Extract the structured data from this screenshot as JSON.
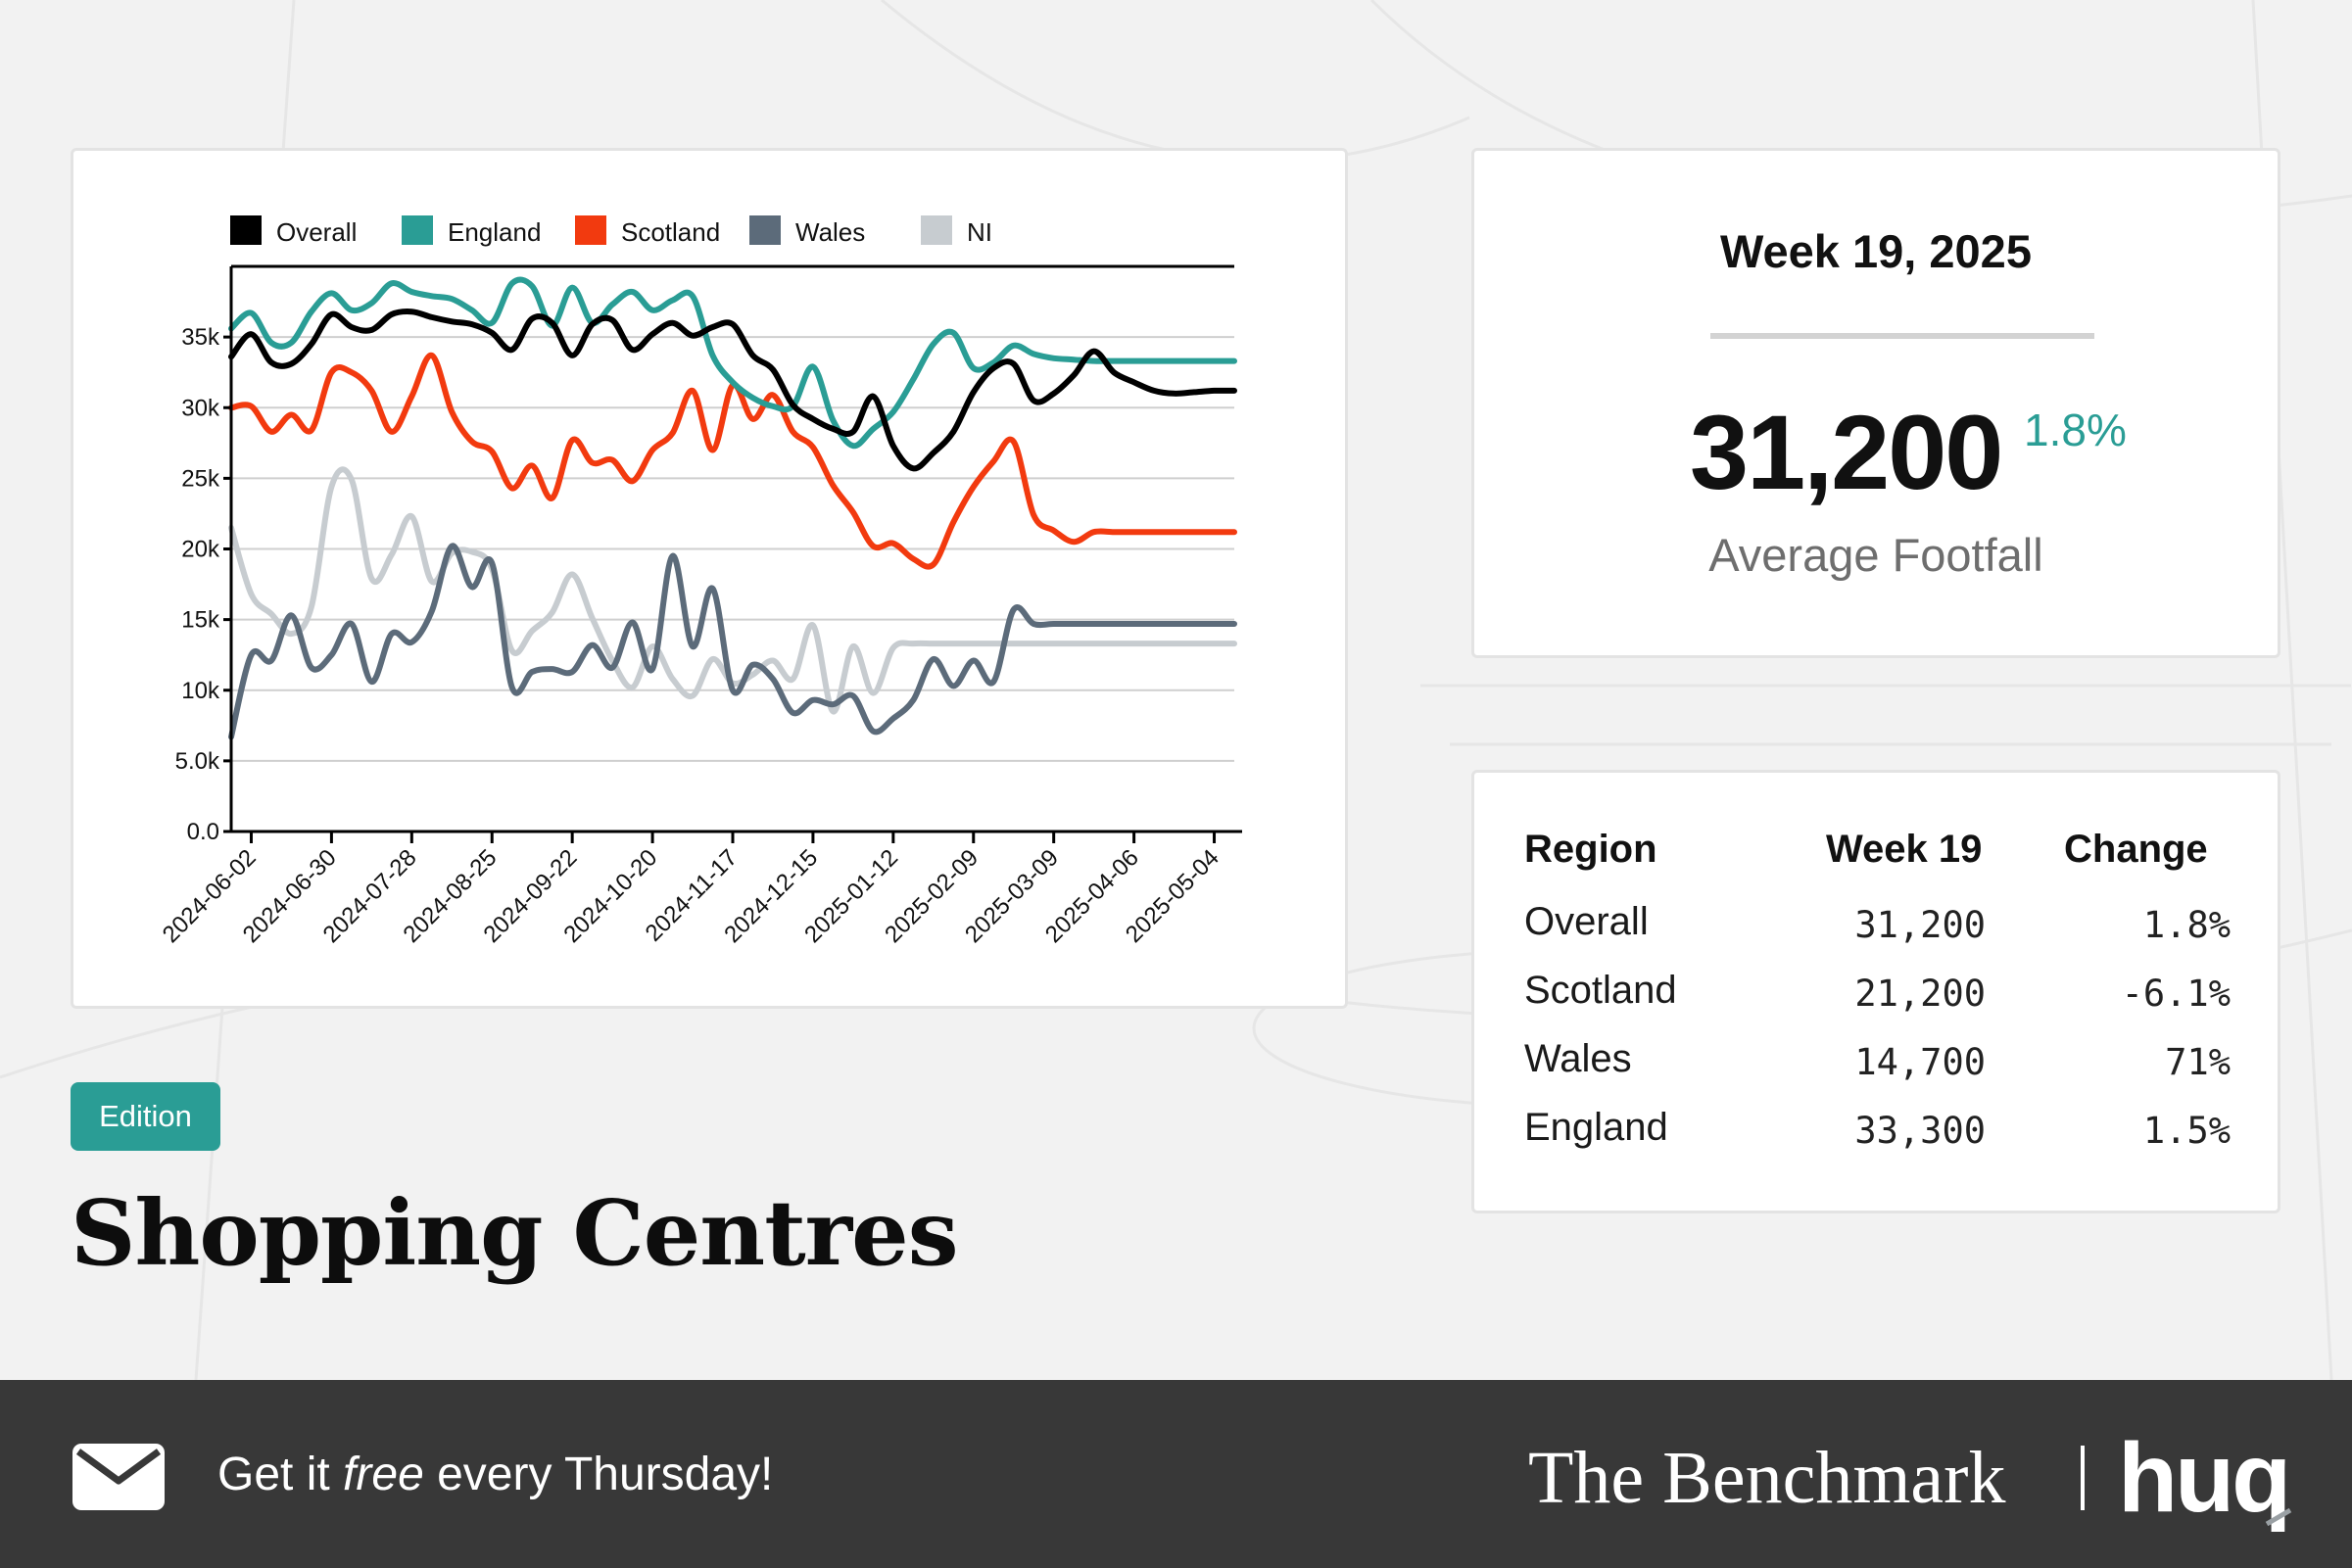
{
  "card": {
    "week_label": "Week 19, 2025",
    "value": "31,200",
    "change": "1.8%",
    "label": "Average Footfall"
  },
  "table": {
    "headers": [
      "Region",
      "Week 19",
      "Change"
    ],
    "rows": [
      {
        "region": "Overall",
        "week": "31,200",
        "change": "1.8%"
      },
      {
        "region": "Scotland",
        "week": "21,200",
        "change": "-6.1%"
      },
      {
        "region": "Wales",
        "week": "14,700",
        "change": "71%"
      },
      {
        "region": "England",
        "week": "33,300",
        "change": "1.5%"
      }
    ]
  },
  "edition": "Edition",
  "title": "Shopping Centres",
  "footer": {
    "cta_prefix": "Get it ",
    "cta_emphasis": "free",
    "cta_suffix": " every Thursday!",
    "brand": "The Benchmark",
    "logo": "huq"
  },
  "colors": {
    "Overall": "#000000",
    "England": "#2a9d95",
    "Scotland": "#f23a0f",
    "Wales": "#5c6b7a",
    "NI": "#c7ccd0",
    "accent": "#2a9d95",
    "footer_bg": "#383838"
  },
  "icons": {
    "mail": "envelope-icon"
  },
  "chart_data": {
    "type": "line",
    "legend_position": "top-left",
    "grid": true,
    "ylim": [
      0,
      40000
    ],
    "y_ticks": [
      0,
      5000,
      10000,
      15000,
      20000,
      25000,
      30000,
      35000
    ],
    "y_tick_labels": [
      "0.0",
      "5.0k",
      "10k",
      "15k",
      "20k",
      "25k",
      "30k",
      "35k"
    ],
    "x_start": "2024-05-26",
    "x_end": "2025-05-11",
    "x_ticks": [
      "2024-06-02",
      "2024-06-30",
      "2024-07-28",
      "2024-08-25",
      "2024-09-22",
      "2024-10-20",
      "2024-11-17",
      "2024-12-15",
      "2025-01-12",
      "2025-02-09",
      "2025-03-09",
      "2025-04-06",
      "2025-05-04"
    ],
    "x": [
      "2024-05-26",
      "2024-06-02",
      "2024-06-09",
      "2024-06-16",
      "2024-06-23",
      "2024-06-30",
      "2024-07-07",
      "2024-07-14",
      "2024-07-21",
      "2024-07-28",
      "2024-08-04",
      "2024-08-11",
      "2024-08-18",
      "2024-08-25",
      "2024-09-01",
      "2024-09-08",
      "2024-09-15",
      "2024-09-22",
      "2024-09-29",
      "2024-10-06",
      "2024-10-13",
      "2024-10-20",
      "2024-10-27",
      "2024-11-03",
      "2024-11-10",
      "2024-11-17",
      "2024-11-24",
      "2024-12-01",
      "2024-12-08",
      "2024-12-15",
      "2024-12-22",
      "2024-12-29",
      "2025-01-05",
      "2025-01-12",
      "2025-01-19",
      "2025-01-26",
      "2025-02-02",
      "2025-02-09",
      "2025-02-16",
      "2025-02-23",
      "2025-03-02",
      "2025-03-09",
      "2025-03-16",
      "2025-03-23",
      "2025-03-30",
      "2025-04-06",
      "2025-04-13",
      "2025-04-20",
      "2025-04-27",
      "2025-05-04",
      "2025-05-11"
    ],
    "series": [
      {
        "name": "Overall",
        "values": [
          33600,
          35200,
          33200,
          33100,
          34500,
          36600,
          35700,
          35500,
          36600,
          36800,
          36400,
          36100,
          35900,
          35300,
          34100,
          36300,
          36000,
          33700,
          35900,
          36200,
          34100,
          35200,
          36000,
          35100,
          35700,
          35900,
          33700,
          32700,
          30200,
          29200,
          28500,
          28300,
          30800,
          27300,
          25700,
          26800,
          28300,
          31100,
          32800,
          33100,
          30500,
          31000,
          32300,
          34000,
          32500,
          31800,
          31200,
          31000,
          31100,
          31200,
          31200
        ]
      },
      {
        "name": "England",
        "values": [
          35600,
          36700,
          34600,
          34600,
          36800,
          38100,
          36900,
          37400,
          38800,
          38200,
          37900,
          37700,
          36900,
          36000,
          38800,
          38600,
          35800,
          38500,
          36000,
          37300,
          38200,
          36900,
          37600,
          37900,
          33700,
          31800,
          30700,
          30100,
          30100,
          32900,
          29100,
          27300,
          28500,
          29700,
          32000,
          34500,
          35300,
          32800,
          33200,
          34400,
          33800,
          33500,
          33400,
          33300,
          33300,
          33300,
          33300,
          33300,
          33300,
          33300,
          33300
        ]
      },
      {
        "name": "Scotland",
        "values": [
          30000,
          30100,
          28300,
          29500,
          28400,
          32500,
          32500,
          31200,
          28300,
          30800,
          33700,
          29700,
          27600,
          26900,
          24300,
          25900,
          23600,
          27700,
          26100,
          26300,
          24800,
          27000,
          28200,
          31200,
          27000,
          31600,
          29200,
          30900,
          28300,
          27200,
          24500,
          22600,
          20200,
          20400,
          19300,
          18900,
          21900,
          24400,
          26200,
          27600,
          22400,
          21300,
          20500,
          21200,
          21200,
          21200,
          21200,
          21200,
          21200,
          21200,
          21200
        ]
      },
      {
        "name": "Wales",
        "values": [
          6700,
          12500,
          12100,
          15300,
          11600,
          12500,
          14700,
          10600,
          14000,
          13400,
          15600,
          20200,
          17300,
          19000,
          10200,
          11300,
          11500,
          11300,
          13200,
          11600,
          14800,
          11500,
          19500,
          13100,
          17200,
          10000,
          11800,
          10800,
          8400,
          9300,
          9000,
          9600,
          7100,
          8000,
          9300,
          12200,
          10300,
          12100,
          10600,
          15700,
          14700,
          14700,
          14700,
          14700,
          14700,
          14700,
          14700,
          14700,
          14700,
          14700,
          14700
        ]
      },
      {
        "name": "NI",
        "values": [
          21500,
          16800,
          15400,
          14000,
          15900,
          24400,
          24900,
          17900,
          19600,
          22300,
          17700,
          19700,
          19800,
          18600,
          12800,
          14200,
          15500,
          18200,
          15100,
          12100,
          10200,
          13100,
          10800,
          9600,
          12200,
          10500,
          11100,
          12100,
          10800,
          14600,
          8500,
          13100,
          9800,
          13000,
          13300,
          13300,
          13300,
          13300,
          13300,
          13300,
          13300,
          13300,
          13300,
          13300,
          13300,
          13300,
          13300,
          13300,
          13300,
          13300,
          13300
        ]
      }
    ]
  }
}
